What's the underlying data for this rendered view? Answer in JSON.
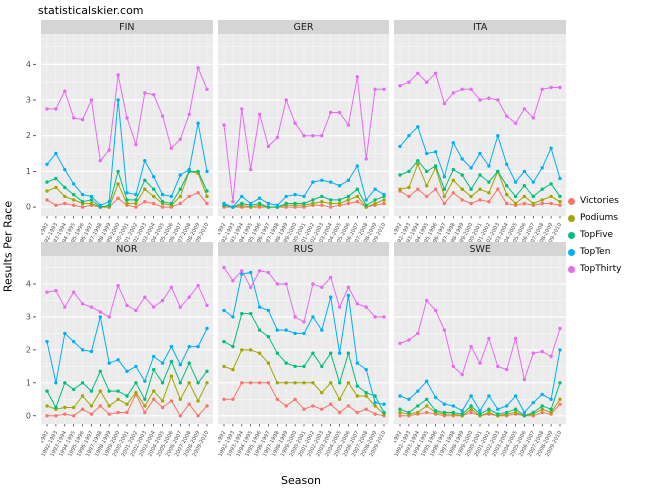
{
  "site_title": "statisticalskier.com",
  "axes": {
    "x_label": "Season",
    "y_label": "Results Per Race",
    "y_ticks": [
      0,
      1,
      2,
      3,
      4
    ]
  },
  "legend": {
    "items": [
      {
        "label": "Victories",
        "color": "#F8766D"
      },
      {
        "label": "Podiums",
        "color": "#A3A500"
      },
      {
        "label": "TopFive",
        "color": "#00BF7D"
      },
      {
        "label": "TopTen",
        "color": "#00B0F6"
      },
      {
        "label": "TopThirty",
        "color": "#E76BF3"
      }
    ]
  },
  "chart_data": {
    "type": "line",
    "title": "",
    "xlabel": "Season",
    "ylabel": "Results Per Race",
    "ylim": [
      0,
      4.6
    ],
    "grid": true,
    "facets": [
      "FIN",
      "GER",
      "ITA",
      "NOR",
      "RUS",
      "SWE"
    ],
    "x": [
      "1991-1992",
      "1992-1993",
      "1993-1994",
      "1994-1995",
      "1995-1996",
      "1996-1997",
      "1997-1998",
      "1998-1999",
      "1999-2000",
      "2000-2001",
      "2001-2002",
      "2002-2003",
      "2003-2004",
      "2004-2005",
      "2005-2006",
      "2006-2007",
      "2007-2008",
      "2008-2009",
      "2009-2010"
    ],
    "series_names": [
      "Victories",
      "Podiums",
      "TopFive",
      "TopTen",
      "TopThirty"
    ],
    "colors": {
      "Victories": "#F8766D",
      "Podiums": "#A3A500",
      "TopFive": "#00BF7D",
      "TopTen": "#00B0F6",
      "TopThirty": "#E76BF3"
    },
    "panels": {
      "FIN": {
        "Victories": [
          0.2,
          0.05,
          0.1,
          0.05,
          0,
          0.05,
          0,
          0,
          0.25,
          0.05,
          0,
          0.15,
          0.1,
          0,
          0,
          0.1,
          0.3,
          0.4,
          0.1
        ],
        "Podiums": [
          0.45,
          0.55,
          0.3,
          0.2,
          0.1,
          0.1,
          0,
          0,
          0.65,
          0.1,
          0.1,
          0.5,
          0.3,
          0.1,
          0.05,
          0.3,
          1.0,
          0.95,
          0.3
        ],
        "TopFive": [
          0.7,
          0.8,
          0.55,
          0.35,
          0.15,
          0.2,
          0,
          0.05,
          1.0,
          0.2,
          0.2,
          0.75,
          0.5,
          0.15,
          0.1,
          0.5,
          1.0,
          1.0,
          0.45
        ],
        "TopTen": [
          1.2,
          1.5,
          1.05,
          0.65,
          0.35,
          0.3,
          0.05,
          0.15,
          3.0,
          0.4,
          0.35,
          1.3,
          0.85,
          0.35,
          0.3,
          0.9,
          1.05,
          2.35,
          1.0
        ],
        "TopThirty": [
          2.75,
          2.75,
          3.25,
          2.5,
          2.45,
          3.0,
          1.3,
          1.6,
          3.7,
          2.5,
          1.75,
          3.2,
          3.15,
          2.55,
          1.65,
          1.9,
          2.6,
          3.9,
          3.3
        ]
      },
      "GER": {
        "Victories": [
          0,
          0,
          0,
          0,
          0,
          0,
          0,
          0,
          0,
          0,
          0.05,
          0.05,
          0,
          0.05,
          0.1,
          0.15,
          0,
          0.05,
          0.1
        ],
        "Podiums": [
          0.05,
          0,
          0.05,
          0,
          0.05,
          0,
          0,
          0.05,
          0.05,
          0.05,
          0.1,
          0.15,
          0.1,
          0.1,
          0.2,
          0.3,
          0,
          0.1,
          0.2
        ],
        "TopFive": [
          0.05,
          0,
          0.1,
          0.05,
          0.1,
          0,
          0,
          0.1,
          0.1,
          0.1,
          0.2,
          0.3,
          0.2,
          0.2,
          0.3,
          0.5,
          0.05,
          0.2,
          0.3
        ],
        "TopTen": [
          0.1,
          0,
          0.3,
          0.1,
          0.25,
          0.1,
          0.05,
          0.3,
          0.35,
          0.3,
          0.7,
          0.75,
          0.7,
          0.6,
          0.75,
          1.15,
          0.2,
          0.5,
          0.35
        ],
        "TopThirty": [
          2.3,
          0.15,
          2.75,
          1.05,
          2.6,
          1.7,
          1.95,
          3.0,
          2.35,
          2.0,
          2.0,
          2.0,
          2.65,
          2.65,
          2.3,
          3.65,
          1.35,
          3.3,
          3.3
        ]
      },
      "ITA": {
        "Victories": [
          0.45,
          0.3,
          0.5,
          0.3,
          0.5,
          0.1,
          0.4,
          0.2,
          0.1,
          0.2,
          0.15,
          0.5,
          0.1,
          0.05,
          0.1,
          0.05,
          0.1,
          0.1,
          0.05
        ],
        "Podiums": [
          0.5,
          0.55,
          1.2,
          0.6,
          1.1,
          0.3,
          0.75,
          0.5,
          0.3,
          0.5,
          0.4,
          1.0,
          0.35,
          0.1,
          0.3,
          0.1,
          0.2,
          0.3,
          0.15
        ],
        "TopFive": [
          0.9,
          1.0,
          1.3,
          1.0,
          1.15,
          0.5,
          1.05,
          0.9,
          0.5,
          0.9,
          0.7,
          1.0,
          0.6,
          0.3,
          0.6,
          0.3,
          0.5,
          0.65,
          0.3
        ],
        "TopTen": [
          1.7,
          2.0,
          2.25,
          1.5,
          1.55,
          0.85,
          1.8,
          1.35,
          1.1,
          1.5,
          1.15,
          2.0,
          1.2,
          0.7,
          1.0,
          0.7,
          1.1,
          1.65,
          0.8
        ],
        "TopThirty": [
          3.4,
          3.5,
          3.75,
          3.5,
          3.75,
          2.9,
          3.2,
          3.3,
          3.3,
          3.0,
          3.05,
          3.0,
          2.55,
          2.35,
          2.75,
          2.5,
          3.3,
          3.35,
          3.35
        ]
      },
      "NOR": {
        "Victories": [
          0,
          0,
          0.05,
          0,
          0.2,
          0.05,
          0.3,
          0.05,
          0.1,
          0.1,
          0.65,
          0.1,
          0.5,
          0.25,
          0.45,
          0,
          0.35,
          0,
          0.3
        ],
        "Podiums": [
          0.3,
          0.2,
          0.25,
          0.25,
          0.6,
          0.3,
          0.75,
          0.3,
          0.5,
          0.35,
          0.7,
          0.3,
          0.75,
          0.45,
          1.2,
          0.5,
          1.0,
          0.45,
          1.0
        ],
        "TopFive": [
          0.75,
          0.25,
          1.0,
          0.8,
          1.0,
          0.75,
          1.35,
          0.75,
          0.75,
          0.6,
          1.0,
          0.5,
          1.4,
          1.0,
          1.65,
          1.0,
          1.6,
          1.0,
          1.35
        ],
        "TopTen": [
          2.25,
          1.0,
          2.5,
          2.25,
          2.0,
          1.95,
          3.0,
          1.6,
          1.7,
          1.35,
          1.5,
          1.05,
          1.8,
          1.6,
          2.1,
          1.55,
          2.1,
          2.1,
          2.65
        ],
        "TopThirty": [
          3.75,
          3.8,
          3.3,
          3.75,
          3.4,
          3.3,
          3.15,
          3.0,
          3.95,
          3.35,
          3.2,
          3.6,
          3.3,
          3.5,
          3.9,
          3.3,
          3.6,
          3.95,
          3.35
        ]
      },
      "RUS": {
        "Victories": [
          0.5,
          0.5,
          1.0,
          1.0,
          1.0,
          1.0,
          0.5,
          0.3,
          0.5,
          0.2,
          0.3,
          0.2,
          0.35,
          0.1,
          0.3,
          0.1,
          0.2,
          0.05,
          0
        ],
        "Podiums": [
          1.5,
          1.4,
          2.0,
          2.0,
          1.9,
          1.6,
          1.0,
          1.0,
          1.0,
          1.0,
          1.0,
          0.7,
          1.0,
          0.5,
          1.0,
          0.6,
          0.6,
          0.3,
          0.05
        ],
        "TopFive": [
          2.25,
          2.1,
          3.1,
          3.1,
          2.6,
          2.4,
          1.9,
          1.6,
          1.5,
          1.5,
          1.9,
          1.5,
          1.9,
          1.0,
          1.9,
          0.9,
          0.7,
          0.6,
          0.1
        ],
        "TopTen": [
          3.2,
          3.0,
          4.3,
          4.35,
          3.3,
          3.2,
          2.6,
          2.6,
          2.5,
          2.5,
          3.0,
          2.6,
          3.6,
          1.9,
          3.65,
          1.6,
          1.4,
          0.4,
          0.35
        ],
        "TopThirty": [
          4.5,
          4.1,
          4.4,
          3.9,
          4.4,
          4.35,
          4.0,
          4.0,
          3.0,
          2.85,
          4.0,
          3.9,
          4.2,
          3.3,
          3.9,
          3.4,
          3.3,
          3.0,
          3.0
        ]
      },
      "SWE": {
        "Victories": [
          0,
          0,
          0.05,
          0.1,
          0.05,
          0,
          0,
          0,
          0.1,
          0,
          0.05,
          0,
          0,
          0.05,
          0,
          0,
          0.1,
          0.05,
          0.35
        ],
        "Podiums": [
          0.1,
          0.05,
          0.1,
          0.3,
          0.1,
          0.05,
          0.05,
          0,
          0.2,
          0,
          0.1,
          0,
          0.05,
          0.1,
          0,
          0.05,
          0.2,
          0.1,
          0.5
        ],
        "TopFive": [
          0.2,
          0.1,
          0.3,
          0.5,
          0.15,
          0.1,
          0.1,
          0.05,
          0.3,
          0.05,
          0.2,
          0.05,
          0.1,
          0.2,
          0,
          0.1,
          0.3,
          0.2,
          1.0
        ],
        "TopTen": [
          0.6,
          0.5,
          0.75,
          1.05,
          0.55,
          0.35,
          0.3,
          0.15,
          0.6,
          0.15,
          0.6,
          0.2,
          0.3,
          0.6,
          0.1,
          0.4,
          0.65,
          0.5,
          2.0
        ],
        "TopThirty": [
          2.2,
          2.3,
          2.5,
          3.5,
          3.2,
          2.6,
          1.5,
          1.25,
          2.1,
          1.6,
          2.35,
          1.5,
          1.4,
          2.35,
          1.1,
          1.9,
          1.95,
          1.8,
          2.65
        ]
      }
    }
  }
}
